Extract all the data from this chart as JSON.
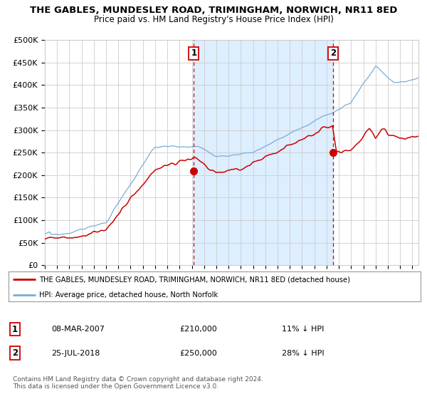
{
  "title": "THE GABLES, MUNDESLEY ROAD, TRIMINGHAM, NORWICH, NR11 8ED",
  "subtitle": "Price paid vs. HM Land Registry's House Price Index (HPI)",
  "legend_line1": "THE GABLES, MUNDESLEY ROAD, TRIMINGHAM, NORWICH, NR11 8ED (detached house)",
  "legend_line2": "HPI: Average price, detached house, North Norfolk",
  "annotation1_date": "08-MAR-2007",
  "annotation1_price": 210000,
  "annotation1_pct": "11% ↓ HPI",
  "annotation2_date": "25-JUL-2018",
  "annotation2_price": 250000,
  "annotation2_pct": "28% ↓ HPI",
  "footer": "Contains HM Land Registry data © Crown copyright and database right 2024.\nThis data is licensed under the Open Government Licence v3.0.",
  "ylim": [
    0,
    500000
  ],
  "yticks": [
    0,
    50000,
    100000,
    150000,
    200000,
    250000,
    300000,
    350000,
    400000,
    450000,
    500000
  ],
  "red_color": "#cc0000",
  "blue_color": "#7aacd6",
  "shade_color": "#ddeeff",
  "background_color": "#ffffff",
  "grid_color": "#cccccc",
  "annotation1_year": 2007.17,
  "annotation2_year": 2018.55
}
